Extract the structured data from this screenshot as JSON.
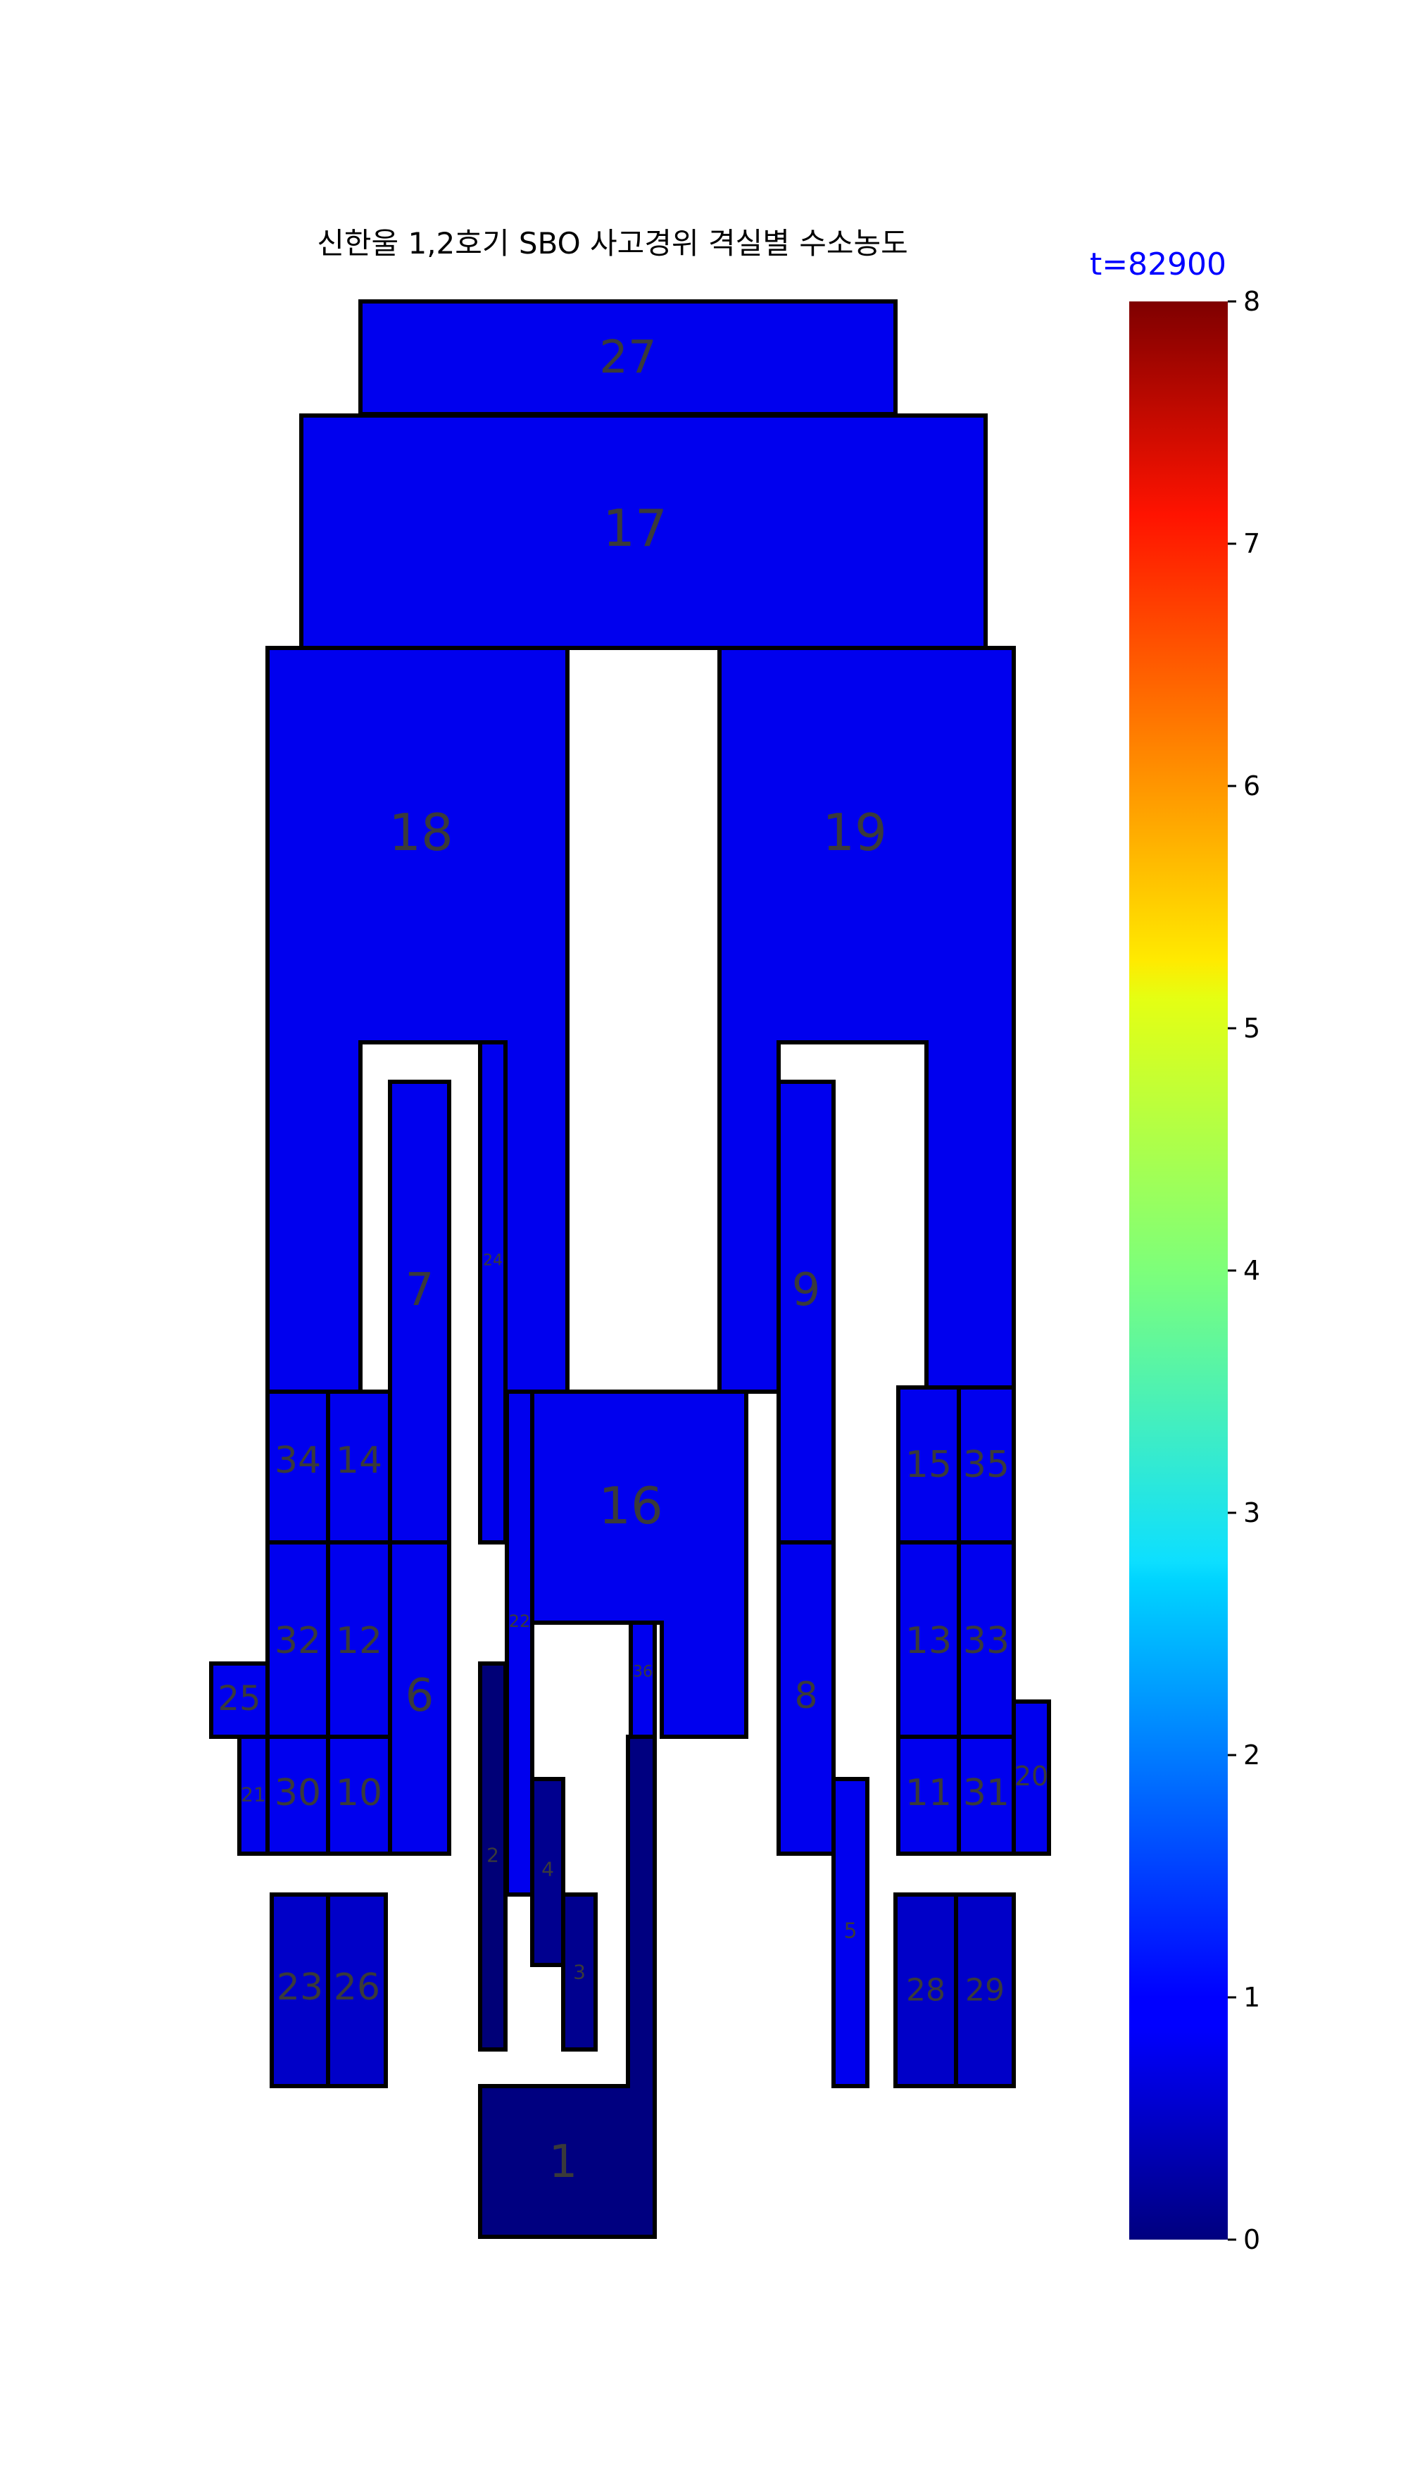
{
  "title": "신한울 1,2호기 SBO 사고경위 격실별 수소농도",
  "time_label": "t=82900",
  "colors": {
    "time_label": "#0000ff"
  },
  "colorbar": {
    "colormap": "jet",
    "min": 0,
    "max": 8,
    "ticks": [
      "0",
      "1",
      "2",
      "3",
      "4",
      "5",
      "6",
      "7",
      "8"
    ]
  },
  "rooms": [
    {
      "id": "27",
      "color": "#0000ee"
    },
    {
      "id": "17",
      "color": "#0000ee"
    },
    {
      "id": "18",
      "color": "#0000ee"
    },
    {
      "id": "19",
      "color": "#0000ee"
    },
    {
      "id": "7",
      "color": "#0000ee"
    },
    {
      "id": "24",
      "color": "#0000ee"
    },
    {
      "id": "9",
      "color": "#0000ee"
    },
    {
      "id": "34",
      "color": "#0000ee"
    },
    {
      "id": "14",
      "color": "#0000ee"
    },
    {
      "id": "16",
      "color": "#0000ee"
    },
    {
      "id": "15",
      "color": "#0000ee"
    },
    {
      "id": "35",
      "color": "#0000ee"
    },
    {
      "id": "32",
      "color": "#0000ee"
    },
    {
      "id": "12",
      "color": "#0000ee"
    },
    {
      "id": "6",
      "color": "#0000ee"
    },
    {
      "id": "25",
      "color": "#0000ee"
    },
    {
      "id": "22",
      "color": "#0000ee"
    },
    {
      "id": "36",
      "color": "#0000ee"
    },
    {
      "id": "8",
      "color": "#0000ee"
    },
    {
      "id": "13",
      "color": "#0000ee"
    },
    {
      "id": "33",
      "color": "#0000ee"
    },
    {
      "id": "21",
      "color": "#0000ee"
    },
    {
      "id": "30",
      "color": "#0000ee"
    },
    {
      "id": "10",
      "color": "#0000ee"
    },
    {
      "id": "11",
      "color": "#0000ee"
    },
    {
      "id": "31",
      "color": "#0000ee"
    },
    {
      "id": "20",
      "color": "#0000ee"
    },
    {
      "id": "2",
      "color": "#000077"
    },
    {
      "id": "4",
      "color": "#00008f"
    },
    {
      "id": "3",
      "color": "#00008f"
    },
    {
      "id": "5",
      "color": "#0000ee"
    },
    {
      "id": "23",
      "color": "#0000c8"
    },
    {
      "id": "26",
      "color": "#0000c8"
    },
    {
      "id": "28",
      "color": "#0000c8"
    },
    {
      "id": "29",
      "color": "#0000c8"
    },
    {
      "id": "1",
      "color": "#000080"
    }
  ]
}
